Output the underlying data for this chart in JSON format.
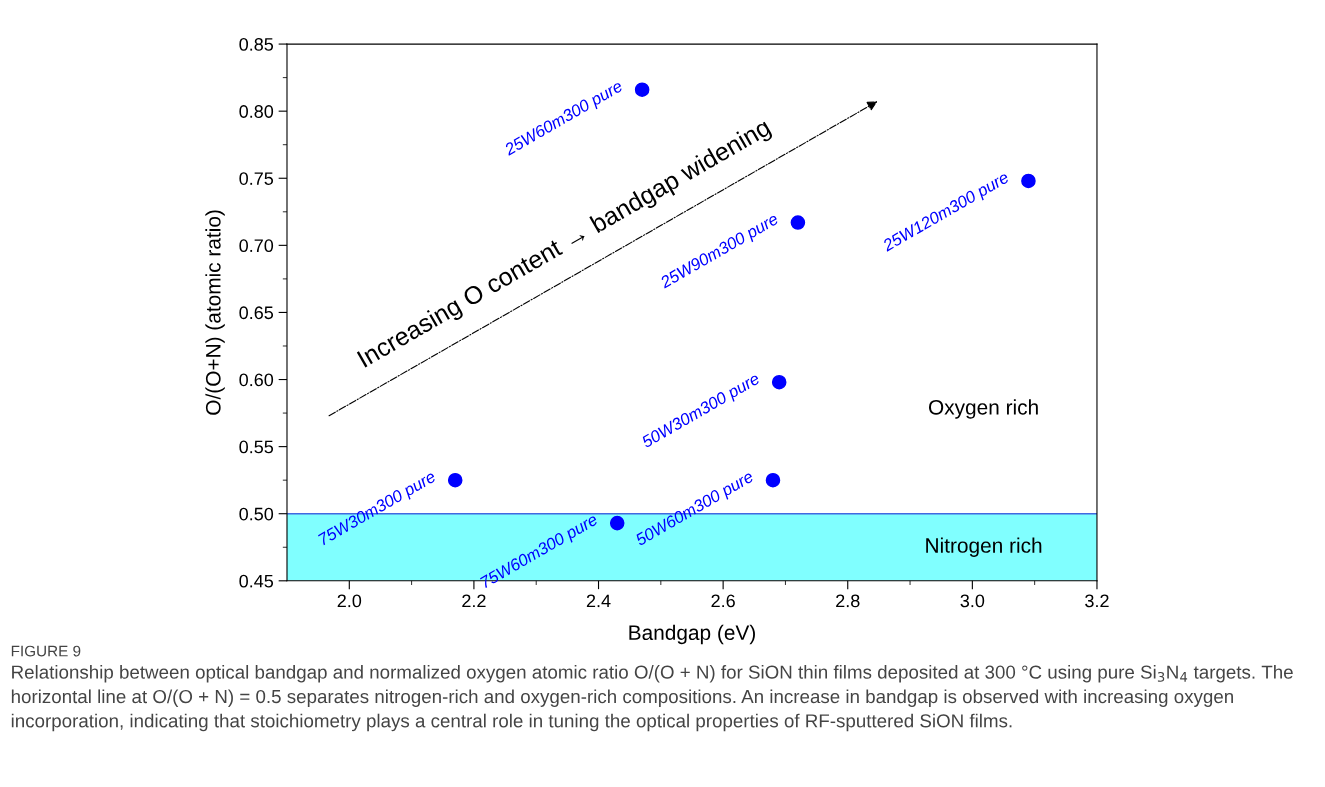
{
  "chart_data": {
    "type": "scatter",
    "xlabel": "Bandgap (eV)",
    "ylabel": "O/(O+N) (atomic ratio)",
    "x": [
      2.47,
      3.09,
      2.72,
      2.69,
      2.68,
      2.17,
      2.43
    ],
    "series": [
      {
        "color": "#0000ff",
        "values": [
          0.816,
          0.748,
          0.717,
          0.598,
          0.525,
          0.525,
          0.493
        ]
      }
    ],
    "marker": "circle",
    "xlim": [
      1.9,
      3.2
    ],
    "xticks": [
      {
        "value": 2.0,
        "label": "2.0"
      },
      {
        "value": 2.2,
        "label": "2.2"
      },
      {
        "value": 2.4,
        "label": "2.4"
      },
      {
        "value": 2.6,
        "label": "2.6"
      },
      {
        "value": 2.8,
        "label": "2.8"
      },
      {
        "value": 3.0,
        "label": "3.0"
      },
      {
        "value": 3.2,
        "label": "3.2"
      }
    ],
    "ylim": [
      0.45,
      0.85
    ],
    "yticks": [
      {
        "value": 0.45,
        "label": "0.45"
      },
      {
        "value": 0.5,
        "label": "0.50"
      },
      {
        "value": 0.55,
        "label": "0.55"
      },
      {
        "value": 0.6,
        "label": "0.60"
      },
      {
        "value": 0.65,
        "label": "0.65"
      },
      {
        "value": 0.7,
        "label": "0.70"
      },
      {
        "value": 0.75,
        "label": "0.75"
      },
      {
        "value": 0.8,
        "label": "0.80"
      },
      {
        "value": 0.85,
        "label": "0.85"
      }
    ],
    "ref_lines": [
      {
        "axis": "y",
        "value": 0.5,
        "color": "#4169e1"
      }
    ],
    "bands": [
      {
        "axis": "y",
        "from": 0.45,
        "to": 0.5,
        "label": "Nitrogen rich",
        "color": "#80ffff"
      }
    ],
    "grid": false,
    "annotations": [
      {
        "text": "25W60m300 pure",
        "x": 2.47,
        "y": 0.816
      },
      {
        "text": "25W120m300 pure",
        "x": 3.09,
        "y": 0.748
      },
      {
        "text": "25W90m300 pure",
        "x": 2.72,
        "y": 0.717
      },
      {
        "text": "50W30m300 pure",
        "x": 2.69,
        "y": 0.598
      },
      {
        "text": "50W60m300 pure",
        "x": 2.68,
        "y": 0.525
      },
      {
        "text": "75W30m300 pure",
        "x": 2.17,
        "y": 0.525
      },
      {
        "text": "75W60m300 pure",
        "x": 2.43,
        "y": 0.493
      },
      "Increasing O content → bandgap widening",
      "Oxygen rich",
      "FIGURE 9",
      "Relationship between optical bandgap and normalized oxygen atomic ratio O/(O + N) for SiON thin films deposited at 300 °C using pure Si$_{3}$N$_{4}$ targets. The horizontal line at O/(O + N) = 0.5 separates nitrogen-rich and oxygen-rich compositions. An increase in bandgap is observed with increasing oxygen incorporation, indicating that stoichiometry plays a central role in tuning the optical properties of RF-sputtered SiON films."
    ]
  }
}
